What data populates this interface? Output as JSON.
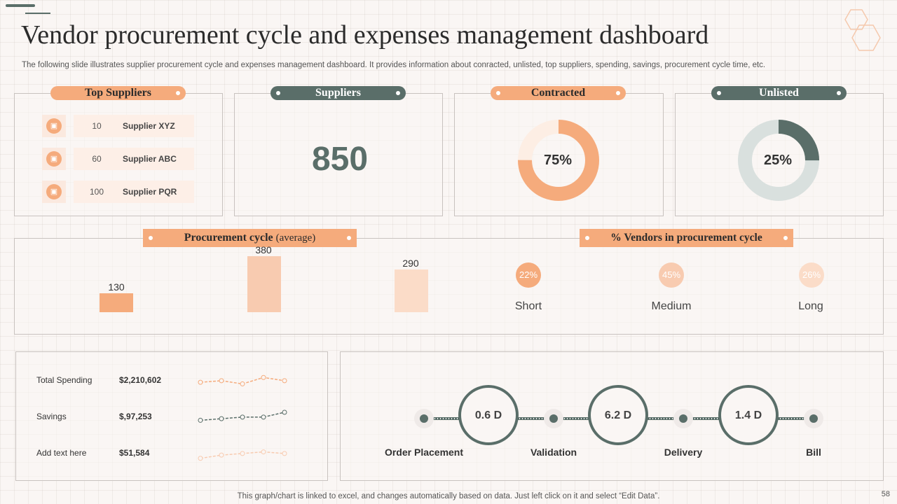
{
  "header": {
    "title": "Vendor procurement cycle and expenses management dashboard",
    "subtitle": "The following slide illustrates supplier procurement cycle and expenses management dashboard. It provides information about conracted, unlisted, top suppliers, spending, savings, procurement cycle time, etc."
  },
  "top_suppliers": {
    "title": "Top Suppliers",
    "items": [
      {
        "value": "10",
        "name": "Supplier XYZ"
      },
      {
        "value": "60",
        "name": "Supplier ABC"
      },
      {
        "value": "100",
        "name": "Supplier PQR"
      }
    ]
  },
  "suppliers": {
    "title": "Suppliers",
    "value": "850"
  },
  "contracted": {
    "title": "Contracted",
    "label": "75%",
    "percent": 75
  },
  "unlisted": {
    "title": "Unlisted",
    "label": "25%",
    "percent": 25
  },
  "procurement_cycle": {
    "title": "Procurement cycle",
    "subtitle": "(average)",
    "bars": [
      {
        "value": 130,
        "label": "130"
      },
      {
        "value": 380,
        "label": "380"
      },
      {
        "value": 290,
        "label": "290"
      }
    ]
  },
  "vendors_cycle": {
    "title": "% Vendors in procurement cycle",
    "items": [
      {
        "pct": "22%",
        "label": "Short"
      },
      {
        "pct": "45%",
        "label": "Medium"
      },
      {
        "pct": "26%",
        "label": "Long"
      }
    ]
  },
  "finance": [
    {
      "label": "Total Spending",
      "value": "$2,210,602",
      "trend": [
        3,
        4,
        2,
        6,
        4
      ]
    },
    {
      "label": "Savings",
      "value": "$,97,253",
      "trend": [
        2,
        3,
        4,
        4,
        7
      ]
    },
    {
      "label": "Add text here",
      "value": "$51,584",
      "trend": [
        1,
        3,
        4,
        5,
        4
      ]
    }
  ],
  "stages": {
    "labels": [
      "Order Placement",
      "Validation",
      "Delivery",
      "Bill"
    ],
    "durations": [
      "0.6  D",
      "6.2  D",
      "1.4  D"
    ]
  },
  "footer": {
    "note": "This graph/chart is linked to excel,  and changes automatically based on data. Just left click on it and select “Edit Data”.",
    "page_number": "58"
  },
  "colors": {
    "accent": "#f5ab7c",
    "dark": "#5a6e69",
    "light_gray": "#d9e0de"
  }
}
